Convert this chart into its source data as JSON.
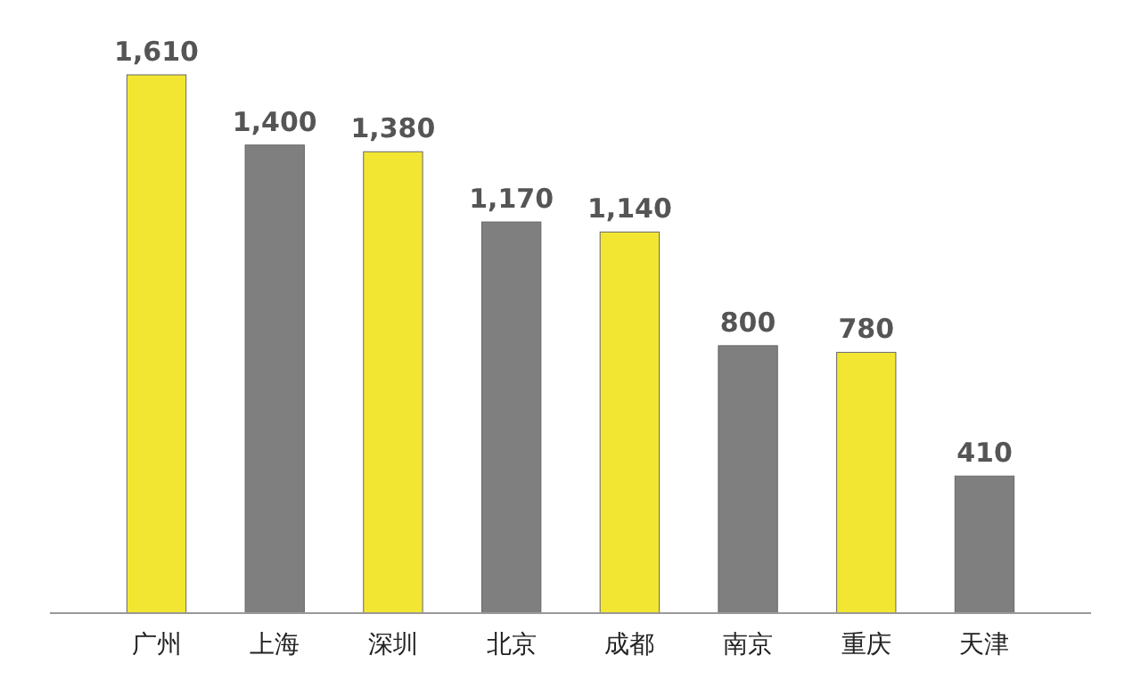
{
  "chart_data": {
    "type": "bar",
    "categories": [
      "广州",
      "上海",
      "深圳",
      "北京",
      "成都",
      "南京",
      "重庆",
      "天津"
    ],
    "values": [
      1610,
      1400,
      1380,
      1170,
      1140,
      800,
      780,
      410
    ],
    "value_labels": [
      "1,610",
      "1,400",
      "1,380",
      "1,170",
      "1,140",
      "800",
      "780",
      "410"
    ],
    "colors": [
      "#f3e633",
      "#7f7f7f",
      "#f3e633",
      "#7f7f7f",
      "#f3e633",
      "#7f7f7f",
      "#f3e633",
      "#7f7f7f"
    ]
  }
}
